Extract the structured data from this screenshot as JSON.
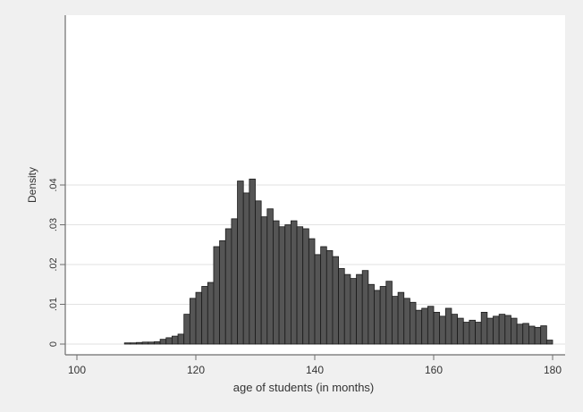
{
  "chart_data": {
    "type": "bar",
    "title": "",
    "xlabel": "age of students (in months)",
    "ylabel": "Density",
    "xlim": [
      100,
      180
    ],
    "ylim": [
      0,
      0.04
    ],
    "xticks": [
      100,
      120,
      140,
      160,
      180
    ],
    "xtick_labels": [
      "100",
      "120",
      "140",
      "160",
      "180"
    ],
    "yticks": [
      0,
      0.01,
      0.02,
      0.03,
      0.04
    ],
    "ytick_labels": [
      "0",
      ".01",
      ".02",
      ".03",
      ".04"
    ],
    "grid": true,
    "bin_width": 1,
    "bins": [
      {
        "x": 108,
        "y": 0.0003
      },
      {
        "x": 109,
        "y": 0.0003
      },
      {
        "x": 110,
        "y": 0.0004
      },
      {
        "x": 111,
        "y": 0.0005
      },
      {
        "x": 112,
        "y": 0.0005
      },
      {
        "x": 113,
        "y": 0.0006
      },
      {
        "x": 114,
        "y": 0.0012
      },
      {
        "x": 115,
        "y": 0.0016
      },
      {
        "x": 116,
        "y": 0.002
      },
      {
        "x": 117,
        "y": 0.0025
      },
      {
        "x": 118,
        "y": 0.0075
      },
      {
        "x": 119,
        "y": 0.0115
      },
      {
        "x": 120,
        "y": 0.013
      },
      {
        "x": 121,
        "y": 0.0145
      },
      {
        "x": 122,
        "y": 0.0155
      },
      {
        "x": 123,
        "y": 0.0245
      },
      {
        "x": 124,
        "y": 0.026
      },
      {
        "x": 125,
        "y": 0.029
      },
      {
        "x": 126,
        "y": 0.0315
      },
      {
        "x": 127,
        "y": 0.041
      },
      {
        "x": 128,
        "y": 0.038
      },
      {
        "x": 129,
        "y": 0.0415
      },
      {
        "x": 130,
        "y": 0.036
      },
      {
        "x": 131,
        "y": 0.032
      },
      {
        "x": 132,
        "y": 0.034
      },
      {
        "x": 133,
        "y": 0.031
      },
      {
        "x": 134,
        "y": 0.0295
      },
      {
        "x": 135,
        "y": 0.03
      },
      {
        "x": 136,
        "y": 0.031
      },
      {
        "x": 137,
        "y": 0.0295
      },
      {
        "x": 138,
        "y": 0.029
      },
      {
        "x": 139,
        "y": 0.0265
      },
      {
        "x": 140,
        "y": 0.0225
      },
      {
        "x": 141,
        "y": 0.0245
      },
      {
        "x": 142,
        "y": 0.0235
      },
      {
        "x": 143,
        "y": 0.022
      },
      {
        "x": 144,
        "y": 0.019
      },
      {
        "x": 145,
        "y": 0.0175
      },
      {
        "x": 146,
        "y": 0.0165
      },
      {
        "x": 147,
        "y": 0.0175
      },
      {
        "x": 148,
        "y": 0.0185
      },
      {
        "x": 149,
        "y": 0.015
      },
      {
        "x": 150,
        "y": 0.0135
      },
      {
        "x": 151,
        "y": 0.0145
      },
      {
        "x": 152,
        "y": 0.0158
      },
      {
        "x": 153,
        "y": 0.012
      },
      {
        "x": 154,
        "y": 0.013
      },
      {
        "x": 155,
        "y": 0.0115
      },
      {
        "x": 156,
        "y": 0.0105
      },
      {
        "x": 157,
        "y": 0.0085
      },
      {
        "x": 158,
        "y": 0.009
      },
      {
        "x": 159,
        "y": 0.0095
      },
      {
        "x": 160,
        "y": 0.008
      },
      {
        "x": 161,
        "y": 0.007
      },
      {
        "x": 162,
        "y": 0.009
      },
      {
        "x": 163,
        "y": 0.0075
      },
      {
        "x": 164,
        "y": 0.0065
      },
      {
        "x": 165,
        "y": 0.0055
      },
      {
        "x": 166,
        "y": 0.006
      },
      {
        "x": 167,
        "y": 0.0055
      },
      {
        "x": 168,
        "y": 0.008
      },
      {
        "x": 169,
        "y": 0.0065
      },
      {
        "x": 170,
        "y": 0.007
      },
      {
        "x": 171,
        "y": 0.0075
      },
      {
        "x": 172,
        "y": 0.0072
      },
      {
        "x": 173,
        "y": 0.0065
      },
      {
        "x": 174,
        "y": 0.005
      },
      {
        "x": 175,
        "y": 0.0052
      },
      {
        "x": 176,
        "y": 0.0045
      },
      {
        "x": 177,
        "y": 0.0042
      },
      {
        "x": 178,
        "y": 0.0046
      },
      {
        "x": 179,
        "y": 0.001
      }
    ],
    "colors": {
      "background": "#f0f0f0",
      "plot_background": "#ffffff",
      "bar_fill": "#555555",
      "bar_stroke": "#1a1a1a",
      "grid": "#e2e2e2",
      "axis": "#6e6e6e",
      "text": "#333333"
    }
  }
}
